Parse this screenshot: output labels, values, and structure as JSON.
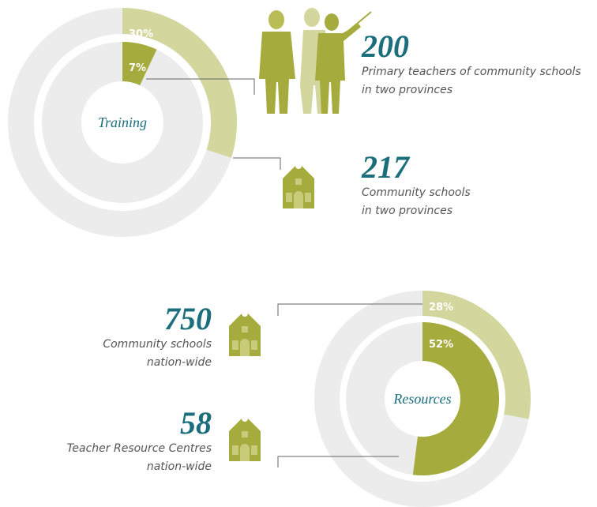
{
  "chart_data": [
    {
      "type": "donut",
      "center_label": "Training",
      "values": [
        30,
        7
      ],
      "value_labels": [
        "30%",
        "7%"
      ],
      "colors": [
        "#d3d79e",
        "#a5ab3c"
      ],
      "annotations": [
        {
          "value": 200,
          "lines": [
            "Primary teachers of community schools",
            "in two provinces"
          ]
        },
        {
          "value": 217,
          "lines": [
            "Community schools",
            "in two provinces"
          ]
        }
      ]
    },
    {
      "type": "donut",
      "center_label": "Resources",
      "values": [
        28,
        52
      ],
      "value_labels": [
        "28%",
        "52%"
      ],
      "colors": [
        "#d3d79e",
        "#a5ab3c"
      ],
      "annotations": [
        {
          "value": 750,
          "lines": [
            "Community schools",
            "nation-wide"
          ]
        },
        {
          "value": 58,
          "lines": [
            "Teacher Resource Centres",
            "nation-wide"
          ]
        }
      ]
    }
  ]
}
